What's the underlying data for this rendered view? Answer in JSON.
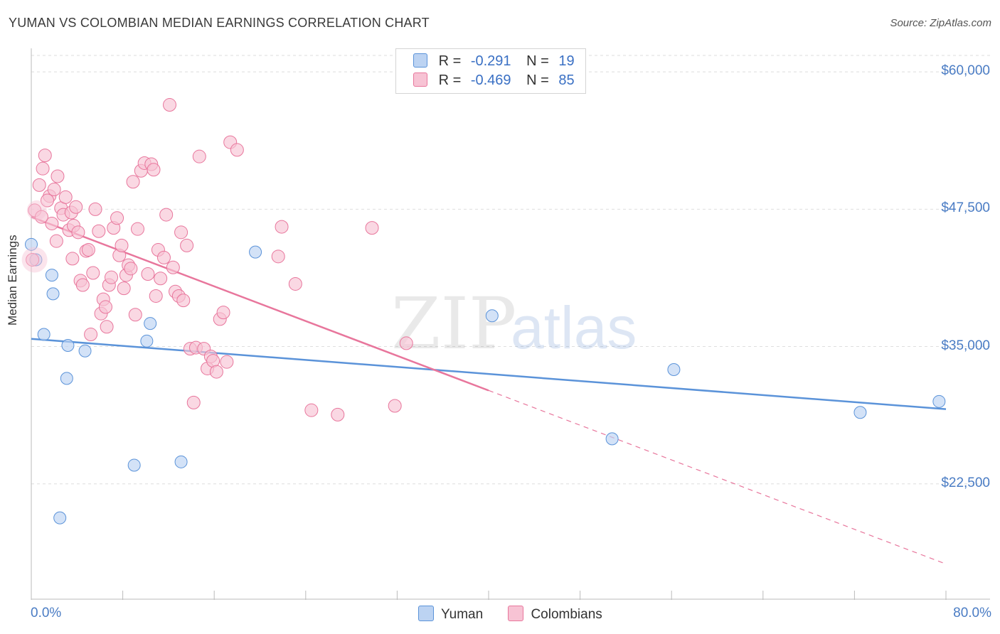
{
  "title": "YUMAN VS COLOMBIAN MEDIAN EARNINGS CORRELATION CHART",
  "source": "Source: ZipAtlas.com",
  "watermark": {
    "zip": "ZIP",
    "atlas": "atlas"
  },
  "colors": {
    "yuman": "#5b93d9",
    "yuman_fill": "#bcd3f2",
    "colombians": "#e8769c",
    "colombians_fill": "#f7c3d4",
    "axis_text": "#4a7cc4"
  },
  "legend": {
    "rows": [
      {
        "r_label": "R =",
        "r_value": "-0.291",
        "n_label": "N =",
        "n_value": "19"
      },
      {
        "r_label": "R =",
        "r_value": "-0.469",
        "n_label": "N =",
        "n_value": "85"
      }
    ],
    "bottom": [
      {
        "label": "Yuman"
      },
      {
        "label": "Colombians"
      }
    ]
  },
  "chart_data": {
    "type": "scatter",
    "title": "YUMAN VS COLOMBIAN MEDIAN EARNINGS CORRELATION CHART",
    "xlabel": "",
    "ylabel": "Median Earnings",
    "xlim": [
      0,
      80
    ],
    "ylim": [
      12000,
      61500
    ],
    "x_tick_labels": [
      "0.0%",
      "80.0%"
    ],
    "y_ticks": [
      22500,
      35000,
      47500,
      60000
    ],
    "y_tick_labels": [
      "$22,500",
      "$35,000",
      "$47,500",
      "$60,000"
    ],
    "grid": true,
    "legend_position": "top-center",
    "series": [
      {
        "name": "Yuman",
        "color": "#5b93d9",
        "points": [
          [
            0.0,
            44300
          ],
          [
            0.4,
            42900
          ],
          [
            1.8,
            41500
          ],
          [
            1.9,
            39800
          ],
          [
            1.1,
            36100
          ],
          [
            3.2,
            35100
          ],
          [
            4.7,
            34600
          ],
          [
            3.1,
            32100
          ],
          [
            10.1,
            35500
          ],
          [
            10.4,
            37100
          ],
          [
            9.0,
            24200
          ],
          [
            13.1,
            24500
          ],
          [
            2.5,
            19400
          ],
          [
            19.6,
            43600
          ],
          [
            40.3,
            37800
          ],
          [
            56.2,
            32900
          ],
          [
            50.8,
            26600
          ],
          [
            72.5,
            29000
          ],
          [
            79.4,
            30000
          ]
        ],
        "trend": {
          "x0": 0,
          "y0": 35700,
          "x1": 80,
          "y1": 29300
        }
      },
      {
        "name": "Colombians",
        "color": "#e8769c",
        "points": [
          [
            0.1,
            42900
          ],
          [
            0.3,
            47400
          ],
          [
            0.7,
            49700
          ],
          [
            1.0,
            51200
          ],
          [
            1.2,
            52400
          ],
          [
            1.6,
            48700
          ],
          [
            1.8,
            46200
          ],
          [
            2.0,
            49300
          ],
          [
            2.3,
            50500
          ],
          [
            2.6,
            47600
          ],
          [
            2.8,
            47000
          ],
          [
            3.0,
            48600
          ],
          [
            3.3,
            45600
          ],
          [
            3.5,
            47200
          ],
          [
            3.7,
            46000
          ],
          [
            3.9,
            47700
          ],
          [
            4.1,
            45400
          ],
          [
            4.3,
            41000
          ],
          [
            4.5,
            40600
          ],
          [
            4.8,
            43700
          ],
          [
            5.0,
            43800
          ],
          [
            5.2,
            36100
          ],
          [
            5.4,
            41700
          ],
          [
            5.6,
            47500
          ],
          [
            5.9,
            45500
          ],
          [
            6.1,
            38000
          ],
          [
            6.3,
            39300
          ],
          [
            6.5,
            38600
          ],
          [
            6.8,
            40600
          ],
          [
            7.0,
            41300
          ],
          [
            7.2,
            45800
          ],
          [
            7.5,
            46700
          ],
          [
            7.7,
            43300
          ],
          [
            7.9,
            44200
          ],
          [
            8.1,
            40300
          ],
          [
            8.3,
            41500
          ],
          [
            8.5,
            42400
          ],
          [
            8.7,
            42100
          ],
          [
            8.9,
            50000
          ],
          [
            9.3,
            45700
          ],
          [
            9.6,
            51000
          ],
          [
            9.9,
            51700
          ],
          [
            10.2,
            41600
          ],
          [
            10.5,
            51600
          ],
          [
            10.7,
            51100
          ],
          [
            10.9,
            39600
          ],
          [
            11.1,
            43800
          ],
          [
            11.3,
            41200
          ],
          [
            11.6,
            43100
          ],
          [
            11.8,
            47000
          ],
          [
            12.1,
            57000
          ],
          [
            12.4,
            42200
          ],
          [
            12.6,
            40000
          ],
          [
            12.9,
            39600
          ],
          [
            13.1,
            45400
          ],
          [
            13.3,
            39200
          ],
          [
            13.6,
            44200
          ],
          [
            13.9,
            34800
          ],
          [
            14.2,
            29900
          ],
          [
            14.4,
            34900
          ],
          [
            14.7,
            52300
          ],
          [
            15.1,
            34800
          ],
          [
            15.4,
            33000
          ],
          [
            15.7,
            34100
          ],
          [
            15.9,
            33700
          ],
          [
            16.2,
            32700
          ],
          [
            16.5,
            37500
          ],
          [
            16.8,
            38100
          ],
          [
            17.1,
            33600
          ],
          [
            17.4,
            53600
          ],
          [
            18.0,
            52900
          ],
          [
            21.6,
            43200
          ],
          [
            21.9,
            45900
          ],
          [
            23.1,
            40700
          ],
          [
            24.5,
            29200
          ],
          [
            26.8,
            28800
          ],
          [
            29.8,
            45800
          ],
          [
            31.8,
            29600
          ],
          [
            32.8,
            35300
          ],
          [
            1.4,
            48300
          ],
          [
            0.9,
            46800
          ],
          [
            2.2,
            44600
          ],
          [
            3.6,
            43000
          ],
          [
            6.6,
            36800
          ],
          [
            9.1,
            37900
          ]
        ],
        "trend": {
          "x0": 0,
          "y0": 46800,
          "x1": 40,
          "y1": 31000,
          "dashed_to_x": 80,
          "dashed_to_y": 15200
        }
      }
    ]
  }
}
